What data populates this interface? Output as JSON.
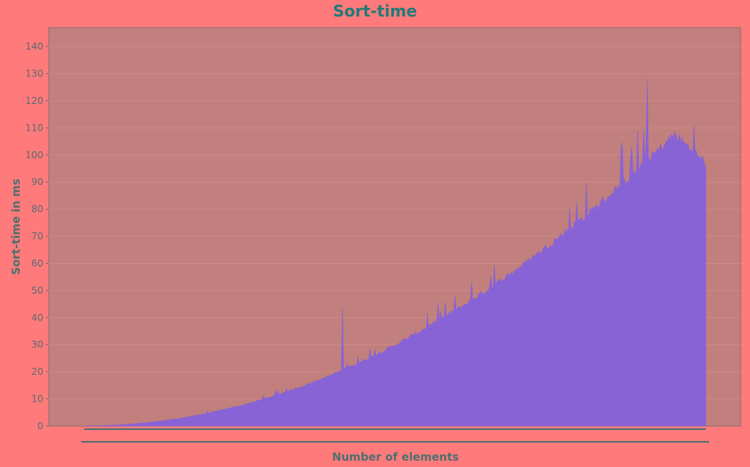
{
  "chart_data": {
    "type": "area",
    "title": "Sort-time",
    "xlabel": "Number of elements",
    "ylabel": "Sort-time in ms",
    "ylim": [
      0,
      147
    ],
    "y_ticks": [
      0,
      10,
      20,
      30,
      40,
      50,
      60,
      70,
      80,
      90,
      100,
      110,
      120,
      130,
      140
    ],
    "x_tick_labels_visible": false,
    "grid": true,
    "legend": "none",
    "colors": {
      "background": "#ff7b7b",
      "plot_area": "#c17f7d",
      "fill": "#8763d6",
      "title": "#1f7a78",
      "axis_text": "#4d6f72",
      "gridline": "#cc8a88"
    },
    "series": [
      {
        "x": [
          0,
          0.05,
          0.1,
          0.15,
          0.2,
          0.25,
          0.3,
          0.35,
          0.4,
          0.45,
          0.5,
          0.55,
          0.6,
          0.65,
          0.7,
          0.75,
          0.8,
          0.85,
          0.9,
          0.95,
          1.0
        ],
        "values": [
          0,
          0.3,
          1.2,
          2.6,
          4.7,
          7.3,
          10.5,
          14.3,
          18.7,
          23.7,
          29.3,
          35.5,
          42.2,
          49.5,
          57.4,
          65.9,
          74.9,
          84.5,
          94.7,
          105.5,
          95
        ],
        "peaks": [
          {
            "x": 0.415,
            "value": 44
          },
          {
            "x": 0.88,
            "value": 103
          },
          {
            "x": 0.905,
            "value": 128
          },
          {
            "x": 0.935,
            "value": 100
          }
        ]
      }
    ]
  }
}
